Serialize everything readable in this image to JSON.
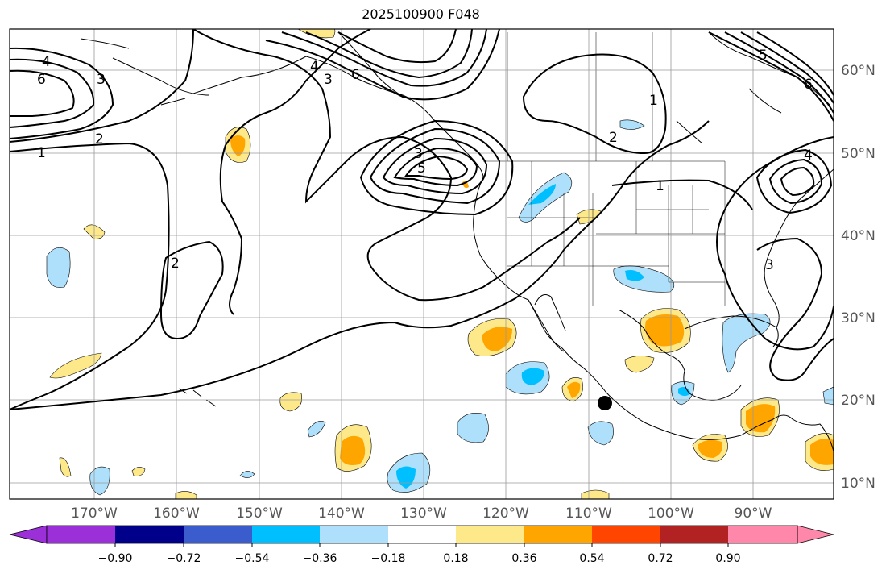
{
  "title": "2025100900 F048",
  "longitude_labels": [
    "170°W",
    "160°W",
    "150°W",
    "140°W",
    "130°W",
    "120°W",
    "110°W",
    "100°W",
    "90°W"
  ],
  "latitude_labels": [
    "10°N",
    "20°N",
    "30°N",
    "40°N",
    "50°N",
    "60°N"
  ],
  "contour_labels": [
    "4",
    "6",
    "3",
    "1",
    "2",
    "4",
    "3",
    "6",
    "3",
    "5",
    "2",
    "1",
    "2",
    "1",
    "6",
    "5",
    "4",
    "3"
  ],
  "colorbar": {
    "ticks": [
      "−0.90",
      "−0.72",
      "−0.54",
      "−0.36",
      "−0.18",
      "0.18",
      "0.36",
      "0.54",
      "0.72",
      "0.90"
    ],
    "colors": [
      "#9b30d9",
      "#00008b",
      "#3a5ccc",
      "#00bfff",
      "#aee0fb",
      "#ffffff",
      "#fde98a",
      "#ffa500",
      "#ff4500",
      "#b22222",
      "#ff88aa"
    ]
  },
  "colors": {
    "land_border": "#000000",
    "grid": "#9a9a9a",
    "contour": "#000000",
    "light_blue": "#aee0fb",
    "mid_blue": "#00bfff",
    "light_yellow": "#fde98a",
    "orange": "#ffa500",
    "red": "#ff4500"
  },
  "marker": "storm-center-dot"
}
